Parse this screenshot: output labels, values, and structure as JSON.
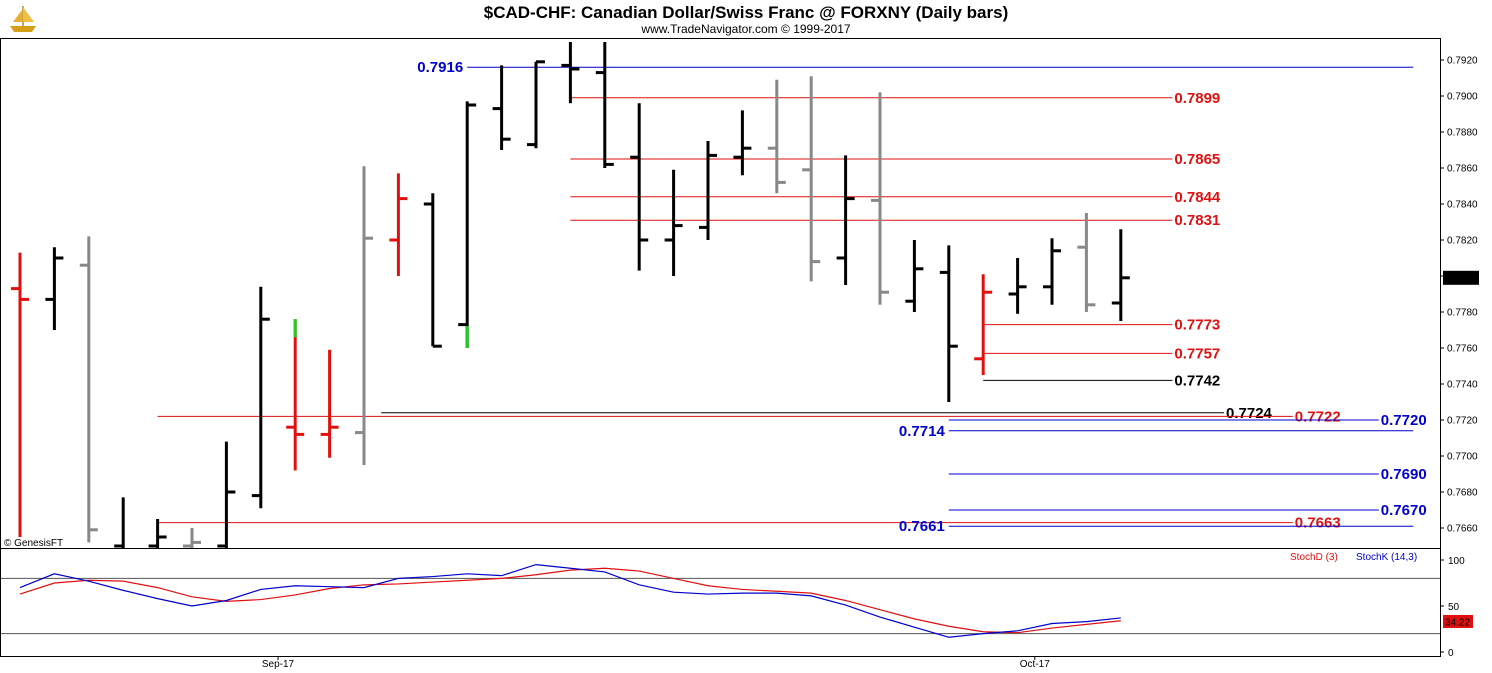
{
  "header": {
    "title": "$CAD-CHF:  Canadian Dollar/Swiss Franc @ FORXNY  (Daily bars)",
    "subtitle": "www.TradeNavigator.com © 1999-2017",
    "watermark": "© GenesisFT",
    "logo_icon": "ship-icon"
  },
  "colors": {
    "black_bar": "#000000",
    "gray_bar": "#888888",
    "red_bar": "#e01010",
    "green_bar": "#22cc22",
    "red_level": "#e01010",
    "blue_level": "#0000cc",
    "black_level": "#000000",
    "stoch_d": "#e01010",
    "stoch_k": "#0000cc",
    "last_price_bg": "#000000",
    "stoch_last_bg": "#e01010"
  },
  "chart_data": {
    "type": "ohlc",
    "ylim": [
      0.765,
      0.793
    ],
    "price_ticks": [
      "0.7920",
      "0.7900",
      "0.7880",
      "0.7860",
      "0.7840",
      "0.7820",
      "0.7800",
      "0.7780",
      "0.7760",
      "0.7740",
      "0.7720",
      "0.7700",
      "0.7680",
      "0.7660"
    ],
    "x_labels": [
      {
        "label": "Sep-17",
        "index": 7.5
      },
      {
        "label": "Oct-17",
        "index": 29.5
      }
    ],
    "last_price": "0.7799",
    "bars": [
      {
        "o": 0.7793,
        "h": 0.7813,
        "l": 0.7655,
        "c": 0.7787,
        "color": "red_bar"
      },
      {
        "o": 0.7787,
        "h": 0.7816,
        "l": 0.777,
        "c": 0.781,
        "color": "black_bar"
      },
      {
        "o": 0.7806,
        "h": 0.7822,
        "l": 0.7652,
        "c": 0.7659,
        "color": "gray_bar"
      },
      {
        "o": 0.765,
        "h": 0.7677,
        "l": 0.764,
        "c": 0.7645,
        "color": "black_bar"
      },
      {
        "o": 0.765,
        "h": 0.7665,
        "l": 0.764,
        "c": 0.7655,
        "color": "black_bar"
      },
      {
        "o": 0.765,
        "h": 0.766,
        "l": 0.764,
        "c": 0.7652,
        "color": "gray_bar"
      },
      {
        "o": 0.765,
        "h": 0.7708,
        "l": 0.7645,
        "c": 0.768,
        "color": "black_bar"
      },
      {
        "o": 0.7678,
        "h": 0.7794,
        "l": 0.7671,
        "c": 0.7776,
        "color": "black_bar"
      },
      {
        "o": 0.7716,
        "h": 0.7776,
        "l": 0.7692,
        "c": 0.7712,
        "color": "red_bar",
        "top_tick_color": "green_bar"
      },
      {
        "o": 0.7712,
        "h": 0.7759,
        "l": 0.7699,
        "c": 0.7716,
        "color": "red_bar"
      },
      {
        "o": 0.7713,
        "h": 0.7861,
        "l": 0.7695,
        "c": 0.7821,
        "color": "gray_bar"
      },
      {
        "o": 0.782,
        "h": 0.7857,
        "l": 0.78,
        "c": 0.7843,
        "color": "red_bar"
      },
      {
        "o": 0.784,
        "h": 0.7846,
        "l": 0.7761,
        "c": 0.7761,
        "color": "black_bar"
      },
      {
        "o": 0.7773,
        "h": 0.7897,
        "l": 0.776,
        "c": 0.7895,
        "color": "black_bar",
        "bottom_tick_color": "green_bar"
      },
      {
        "o": 0.7893,
        "h": 0.7917,
        "l": 0.787,
        "c": 0.7876,
        "color": "black_bar"
      },
      {
        "o": 0.7873,
        "h": 0.7919,
        "l": 0.7871,
        "c": 0.7919,
        "color": "black_bar"
      },
      {
        "o": 0.7917,
        "h": 0.793,
        "l": 0.7896,
        "c": 0.7915,
        "color": "black_bar"
      },
      {
        "o": 0.7913,
        "h": 0.793,
        "l": 0.786,
        "c": 0.7862,
        "color": "black_bar"
      },
      {
        "o": 0.7866,
        "h": 0.7896,
        "l": 0.7803,
        "c": 0.782,
        "color": "black_bar"
      },
      {
        "o": 0.782,
        "h": 0.7859,
        "l": 0.78,
        "c": 0.7828,
        "color": "black_bar"
      },
      {
        "o": 0.7827,
        "h": 0.7875,
        "l": 0.782,
        "c": 0.7867,
        "color": "black_bar"
      },
      {
        "o": 0.7866,
        "h": 0.7892,
        "l": 0.7856,
        "c": 0.7871,
        "color": "black_bar"
      },
      {
        "o": 0.7871,
        "h": 0.7909,
        "l": 0.7846,
        "c": 0.7852,
        "color": "gray_bar"
      },
      {
        "o": 0.7859,
        "h": 0.7911,
        "l": 0.7797,
        "c": 0.7808,
        "color": "gray_bar"
      },
      {
        "o": 0.781,
        "h": 0.7867,
        "l": 0.7795,
        "c": 0.7843,
        "color": "black_bar"
      },
      {
        "o": 0.7842,
        "h": 0.7902,
        "l": 0.7784,
        "c": 0.7791,
        "color": "gray_bar"
      },
      {
        "o": 0.7786,
        "h": 0.782,
        "l": 0.778,
        "c": 0.7804,
        "color": "black_bar"
      },
      {
        "o": 0.7802,
        "h": 0.7817,
        "l": 0.773,
        "c": 0.7761,
        "color": "black_bar"
      },
      {
        "o": 0.7754,
        "h": 0.7801,
        "l": 0.7745,
        "c": 0.7791,
        "color": "red_bar"
      },
      {
        "o": 0.779,
        "h": 0.781,
        "l": 0.7779,
        "c": 0.7794,
        "color": "black_bar"
      },
      {
        "o": 0.7794,
        "h": 0.7821,
        "l": 0.7784,
        "c": 0.7814,
        "color": "black_bar"
      },
      {
        "o": 0.7816,
        "h": 0.7835,
        "l": 0.778,
        "c": 0.7784,
        "color": "gray_bar"
      },
      {
        "o": 0.7785,
        "h": 0.7826,
        "l": 0.7775,
        "c": 0.7799,
        "color": "black_bar"
      }
    ],
    "levels": [
      {
        "label": "0.7916",
        "value": 0.7916,
        "color": "blue_level",
        "label_side": "left",
        "x_start_index": 13.0,
        "x_end_index": 40.5
      },
      {
        "label": "0.7899",
        "value": 0.7899,
        "color": "red_level",
        "label_side": "right",
        "x_start_index": 16.0,
        "x_end_index": 33.5
      },
      {
        "label": "0.7865",
        "value": 0.7865,
        "color": "red_level",
        "label_side": "right",
        "x_start_index": 16.0,
        "x_end_index": 33.5
      },
      {
        "label": "0.7844",
        "value": 0.7844,
        "color": "red_level",
        "label_side": "right",
        "x_start_index": 16.0,
        "x_end_index": 33.5
      },
      {
        "label": "0.7831",
        "value": 0.7831,
        "color": "red_level",
        "label_side": "right",
        "x_start_index": 16.0,
        "x_end_index": 33.5
      },
      {
        "label": "0.7773",
        "value": 0.7773,
        "color": "red_level",
        "label_side": "right",
        "x_start_index": 28.0,
        "x_end_index": 33.5
      },
      {
        "label": "0.7757",
        "value": 0.7757,
        "color": "red_level",
        "label_side": "right",
        "x_start_index": 28.0,
        "x_end_index": 33.5
      },
      {
        "label": "0.7742",
        "value": 0.7742,
        "color": "black_level",
        "label_side": "right",
        "x_start_index": 28.0,
        "x_end_index": 33.5
      },
      {
        "label": "0.7724",
        "value": 0.7724,
        "color": "black_level",
        "label_side": "right",
        "x_start_index": 10.5,
        "x_end_index": 35.0
      },
      {
        "label": "0.7722",
        "value": 0.7722,
        "color": "red_level",
        "label_side": "right",
        "x_start_index": 4.0,
        "x_end_index": 37.0
      },
      {
        "label": "0.7720",
        "value": 0.772,
        "color": "blue_level",
        "label_side": "right",
        "x_start_index": 27.0,
        "x_end_index": 39.5
      },
      {
        "label": "0.7714",
        "value": 0.7714,
        "color": "blue_level",
        "label_side": "left",
        "x_start_index": 27.0,
        "x_end_index": 40.5
      },
      {
        "label": "0.7690",
        "value": 0.769,
        "color": "blue_level",
        "label_side": "right",
        "x_start_index": 27.0,
        "x_end_index": 39.5
      },
      {
        "label": "0.7670",
        "value": 0.767,
        "color": "blue_level",
        "label_side": "right",
        "x_start_index": 27.0,
        "x_end_index": 39.5
      },
      {
        "label": "0.7663",
        "value": 0.7663,
        "color": "red_level",
        "label_side": "right",
        "x_start_index": 4.0,
        "x_end_index": 37.0
      },
      {
        "label": "0.7661",
        "value": 0.7661,
        "color": "blue_level",
        "label_side": "left",
        "x_start_index": 27.0,
        "x_end_index": 40.5
      }
    ],
    "stochastic": {
      "ylim": [
        0,
        100
      ],
      "ticks": [
        "100",
        "50",
        "0"
      ],
      "ref_lines": [
        80,
        20
      ],
      "legend": [
        {
          "label": "StochD (3)",
          "color": "stoch_d"
        },
        {
          "label": "StochK (14,3)",
          "color": "stoch_k"
        }
      ],
      "last_value": "34.22",
      "d_values": [
        63,
        75,
        78,
        77,
        70,
        60,
        55,
        57,
        62,
        69,
        73,
        74,
        76,
        78,
        80,
        84,
        89,
        91,
        88,
        80,
        72,
        68,
        66,
        64,
        56,
        46,
        36,
        28,
        22,
        21,
        26,
        30,
        34
      ],
      "k_values": [
        70,
        85,
        77,
        67,
        58,
        50,
        56,
        68,
        72,
        71,
        70,
        80,
        82,
        85,
        83,
        95,
        91,
        87,
        73,
        65,
        63,
        64,
        64,
        61,
        51,
        38,
        27,
        16,
        20,
        23,
        31,
        33,
        37
      ]
    }
  }
}
